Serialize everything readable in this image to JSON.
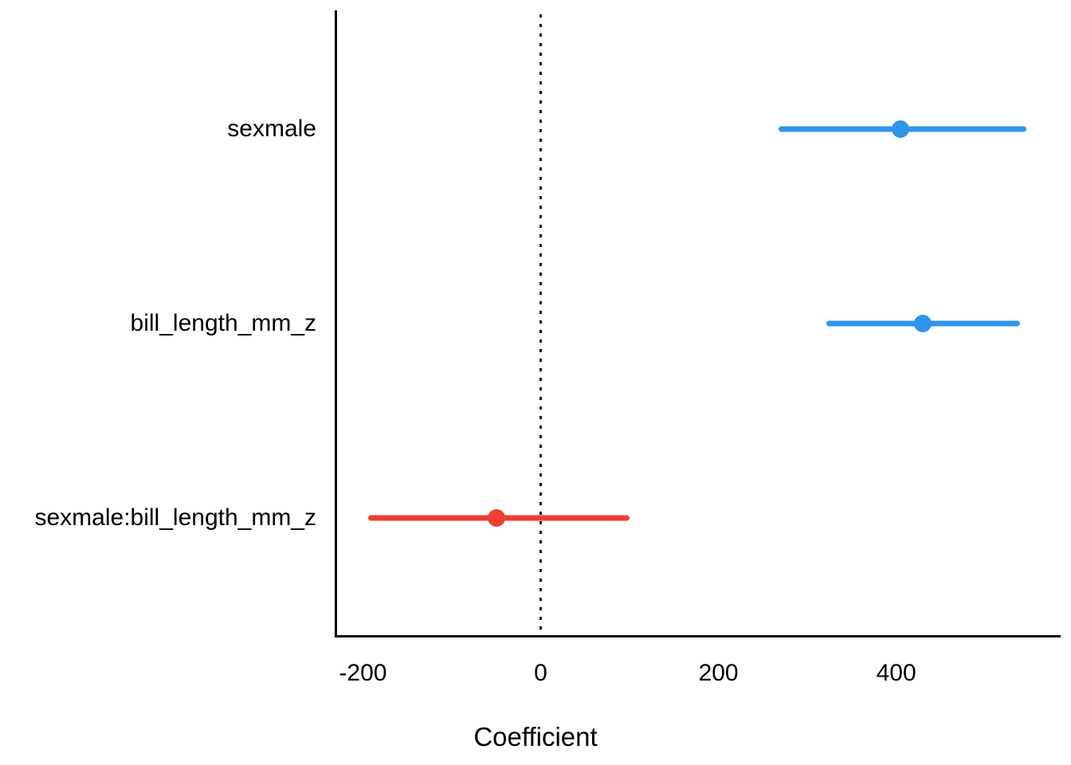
{
  "chart_data": {
    "type": "scatter",
    "subtype": "coefficient-pointrange",
    "title": "",
    "xlabel": "Coefficient",
    "ylabel": "",
    "xlim": [
      -230,
      585
    ],
    "x_ticks": [
      -200,
      0,
      200,
      400
    ],
    "x_tick_labels": [
      "-200",
      "0",
      "200",
      "400"
    ],
    "reference_line_x": 0,
    "grid": false,
    "legend": false,
    "categories": [
      "sexmale",
      "bill_length_mm_z",
      "sexmale:bill_length_mm_z"
    ],
    "series": [
      {
        "name": "sexmale",
        "estimate": 405,
        "ci_low": 268,
        "ci_high": 546,
        "color": "#2E94EC"
      },
      {
        "name": "bill_length_mm_z",
        "estimate": 430,
        "ci_low": 321,
        "ci_high": 539,
        "color": "#2E94EC"
      },
      {
        "name": "sexmale:bill_length_mm_z",
        "estimate": -50,
        "ci_low": -194,
        "ci_high": 100,
        "color": "#F03E33"
      }
    ]
  },
  "colors": {
    "positive_accent": "#2E94EC",
    "negative_accent": "#F03E33",
    "axis": "#000000",
    "background": "#FFFFFF"
  }
}
